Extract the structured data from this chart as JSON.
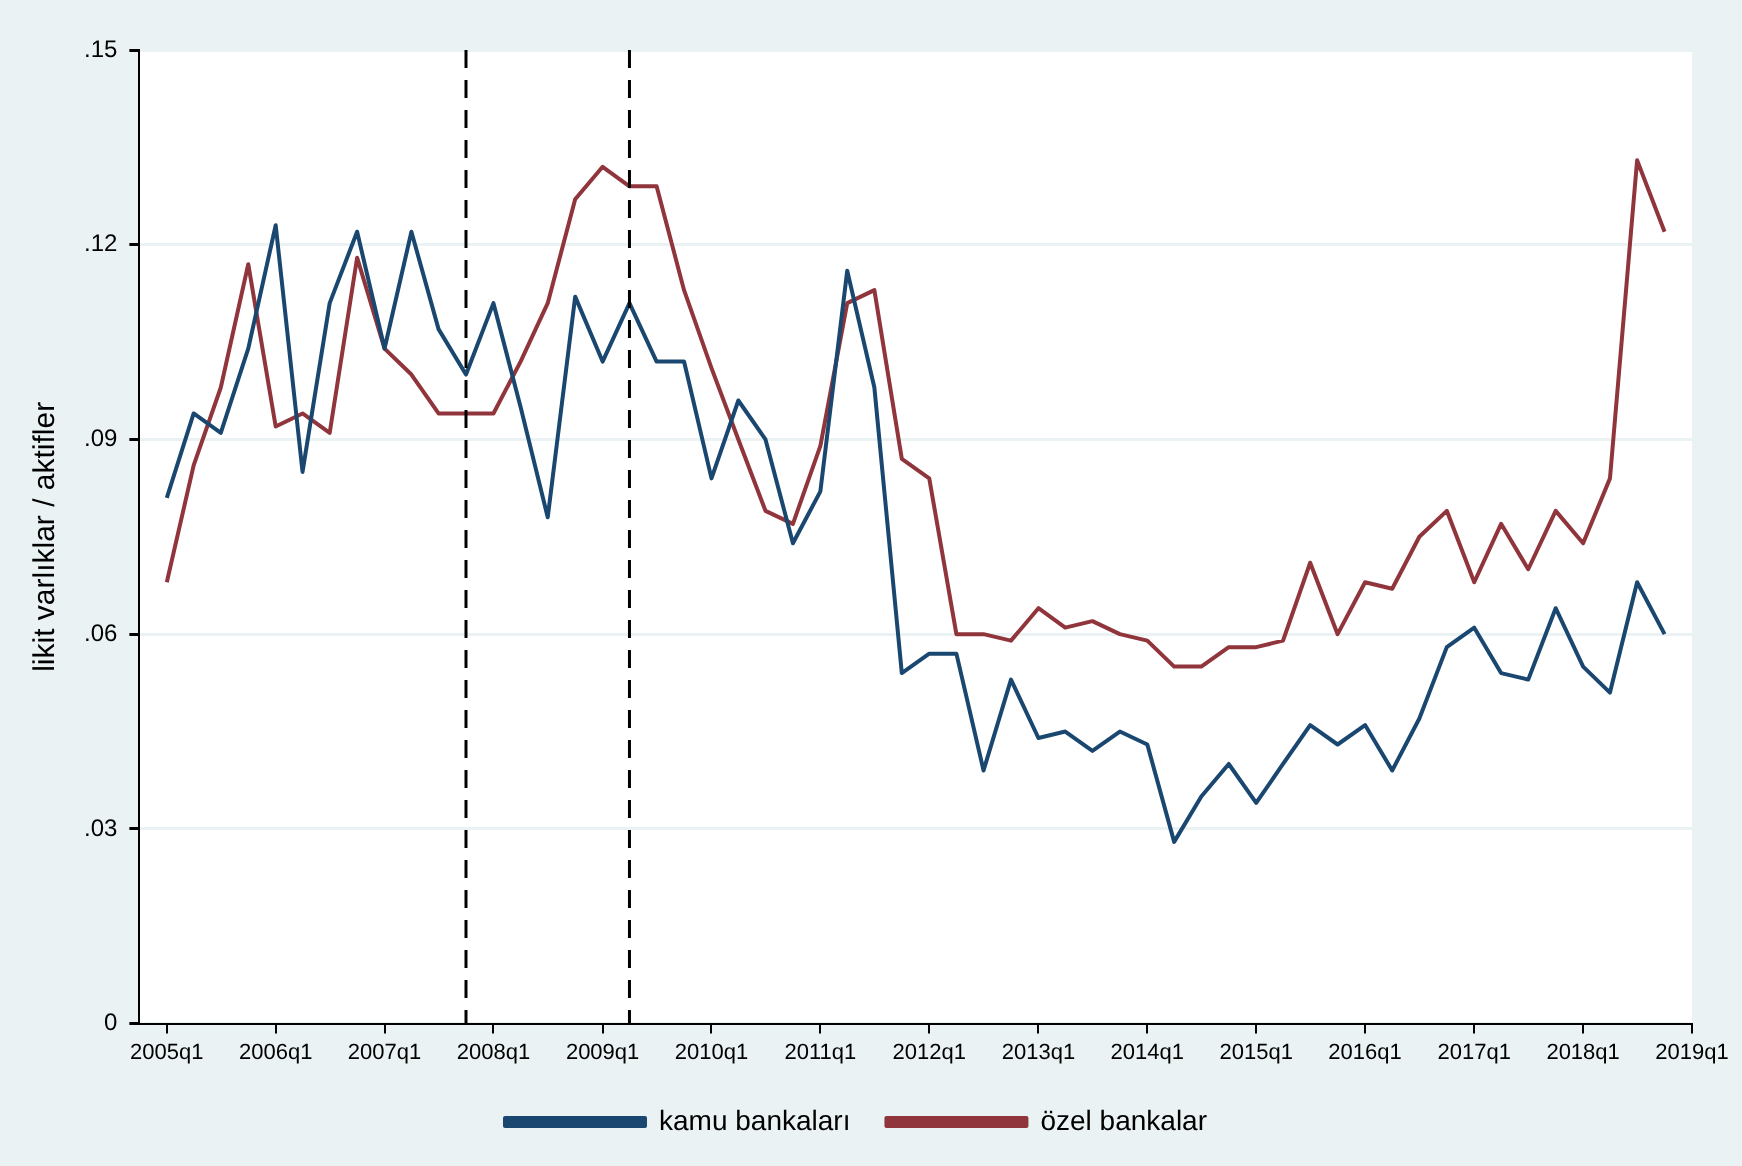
{
  "chart_data": {
    "type": "line",
    "ylabel": "likit varlıklar / aktifler",
    "x": [
      "2005-01",
      "2005-04",
      "2005-07",
      "2005-10",
      "2006-01",
      "2006-04",
      "2006-07",
      "2006-10",
      "2007-01",
      "2007-04",
      "2007-07",
      "2007-10",
      "2008-01",
      "2008-04",
      "2008-07",
      "2008-10",
      "2009-01",
      "2009-04",
      "2009-07",
      "2009-10",
      "2010-01",
      "2010-04",
      "2010-07",
      "2010-10",
      "2011-01",
      "2011-04",
      "2011-07",
      "2011-10",
      "2012-01",
      "2012-04",
      "2012-07",
      "2012-10",
      "2013-01",
      "2013-04",
      "2013-07",
      "2013-10",
      "2014-01",
      "2014-04",
      "2014-07",
      "2014-10",
      "2015-01",
      "2015-04",
      "2015-07",
      "2015-10",
      "2016-01",
      "2016-04",
      "2016-07",
      "2016-10",
      "2017-01",
      "2017-04",
      "2017-07",
      "2017-10",
      "2018-01",
      "2018-04",
      "2018-07",
      "2018-10"
    ],
    "series": [
      {
        "name": "kamu bankaları",
        "color": "#1a476f",
        "values": [
          0.081,
          0.094,
          0.091,
          0.104,
          0.123,
          0.085,
          0.111,
          0.122,
          0.104,
          0.122,
          0.107,
          0.1,
          0.111,
          0.095,
          0.078,
          0.112,
          0.102,
          0.111,
          0.102,
          0.102,
          0.084,
          0.096,
          0.09,
          0.074,
          0.082,
          0.116,
          0.098,
          0.054,
          0.057,
          0.057,
          0.039,
          0.053,
          0.044,
          0.045,
          0.042,
          0.045,
          0.043,
          0.028,
          0.035,
          0.04,
          0.034,
          0.04,
          0.046,
          0.043,
          0.046,
          0.039,
          0.047,
          0.058,
          0.061,
          0.054,
          0.053,
          0.064,
          0.055,
          0.051,
          0.068,
          0.06
        ]
      },
      {
        "name": "özel bankalar",
        "color": "#90353b",
        "values": [
          0.068,
          0.086,
          0.098,
          0.117,
          0.092,
          0.094,
          0.091,
          0.118,
          0.104,
          0.1,
          0.094,
          0.094,
          0.094,
          0.102,
          0.111,
          0.127,
          0.132,
          0.129,
          0.129,
          0.113,
          0.101,
          0.09,
          0.079,
          0.077,
          0.089,
          0.111,
          0.113,
          0.087,
          0.084,
          0.06,
          0.06,
          0.059,
          0.064,
          0.061,
          0.062,
          0.06,
          0.059,
          0.055,
          0.055,
          0.058,
          0.058,
          0.059,
          0.071,
          0.06,
          0.068,
          0.067,
          0.075,
          0.079,
          0.068,
          0.077,
          0.07,
          0.079,
          0.074,
          0.084,
          0.133,
          0.122
        ]
      }
    ],
    "xlim": [
      "2004-10",
      "2019-01"
    ],
    "xticks": [
      {
        "value": "2005-01",
        "label": "2005q1"
      },
      {
        "value": "2006-01",
        "label": "2006q1"
      },
      {
        "value": "2007-01",
        "label": "2007q1"
      },
      {
        "value": "2008-01",
        "label": "2008q1"
      },
      {
        "value": "2009-01",
        "label": "2009q1"
      },
      {
        "value": "2010-01",
        "label": "2010q1"
      },
      {
        "value": "2011-01",
        "label": "2011q1"
      },
      {
        "value": "2012-01",
        "label": "2012q1"
      },
      {
        "value": "2013-01",
        "label": "2013q1"
      },
      {
        "value": "2014-01",
        "label": "2014q1"
      },
      {
        "value": "2015-01",
        "label": "2015q1"
      },
      {
        "value": "2016-01",
        "label": "2016q1"
      },
      {
        "value": "2017-01",
        "label": "2017q1"
      },
      {
        "value": "2018-01",
        "label": "2018q1"
      },
      {
        "value": "2019-01",
        "label": "2019q1"
      }
    ],
    "ylim": [
      0,
      0.15
    ],
    "yticks": [
      0,
      {
        "value": 0.03,
        "label": ".03"
      },
      {
        "value": 0.06,
        "label": ".06"
      },
      {
        "value": 0.09,
        "label": ".09"
      },
      {
        "value": 0.12,
        "label": ".12"
      },
      {
        "value": 0.15,
        "label": ".15"
      }
    ],
    "ref_lines": [
      {
        "axis": "x",
        "value": "2007-10",
        "color": "#000000",
        "line_style": "dashed"
      },
      {
        "axis": "x",
        "value": "2009-04",
        "color": "#000000",
        "line_style": "dashed"
      }
    ],
    "grid": "y",
    "legend": "bottom",
    "marker": "none",
    "line_style": "solid"
  }
}
